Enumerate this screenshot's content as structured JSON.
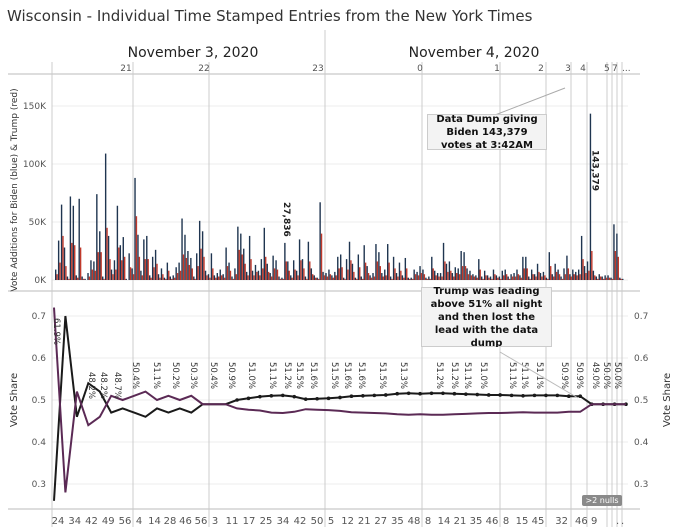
{
  "title": "Wisconsin - Individual Time Stamped Entries from the New York Times",
  "colors": {
    "biden": "#1f3550",
    "trump": "#c0392b",
    "biden_share": "#5b2a55",
    "trump_share": "#1a1a1a",
    "grid": "#c8c8c8"
  },
  "chart_data": [
    {
      "type": "bar",
      "ylabel": "Vote Additions for Biden (blue) & Trump (red)",
      "ytick_labels": [
        "0K",
        "50K",
        "100K",
        "150K"
      ],
      "ylim": [
        0,
        175000
      ],
      "date_labels": [
        "November 3, 2020",
        "November 4, 2020"
      ],
      "hour_labels": [
        "21",
        "22",
        "23",
        "0",
        "1",
        "2",
        "3",
        "4",
        "5",
        "7",
        "..."
      ],
      "series": [
        {
          "name": "Biden",
          "values": [
            9,
            34,
            65,
            28,
            3,
            72,
            64,
            4,
            70,
            3,
            1,
            6,
            17,
            16,
            74,
            42,
            3,
            109,
            38,
            9,
            17,
            64,
            30,
            37,
            1,
            23,
            10,
            88,
            39,
            8,
            35,
            38,
            4,
            20,
            26,
            5,
            10,
            2,
            15,
            3,
            4,
            11,
            15,
            53,
            39,
            25,
            19,
            3,
            23,
            51,
            42,
            8,
            5,
            23,
            4,
            6,
            9,
            5,
            28,
            15,
            3,
            10,
            46,
            40,
            27,
            7,
            38,
            8,
            13,
            8,
            18,
            45,
            14,
            6,
            21,
            17,
            3,
            2,
            32,
            16,
            4,
            17,
            8,
            35,
            18,
            3,
            33,
            10,
            4,
            2,
            67,
            7,
            6,
            9,
            4,
            7,
            20,
            22,
            2,
            18,
            33,
            14,
            2,
            22,
            3,
            30,
            12,
            4,
            6,
            31,
            24,
            6,
            9,
            31,
            3,
            20,
            6,
            15,
            4,
            19,
            2,
            2,
            9,
            7,
            12,
            9,
            2,
            3,
            20,
            8,
            6,
            6,
            32,
            14,
            16,
            6,
            11,
            10,
            25,
            24,
            10,
            8,
            5,
            4,
            18,
            3,
            8,
            4,
            3,
            9,
            4,
            3,
            8,
            9,
            3,
            5,
            6,
            9,
            4,
            20,
            20,
            3,
            9,
            5,
            14,
            6,
            7,
            2,
            24,
            5,
            14,
            9,
            3,
            10,
            21,
            5,
            9,
            7,
            9,
            38,
            12,
            16,
            143.4,
            8,
            3,
            5,
            3,
            4,
            4,
            2,
            48,
            40,
            2,
            1
          ],
          "note_label": "27,836"
        },
        {
          "name": "Trump",
          "values": [
            5,
            15,
            38,
            12,
            1,
            32,
            30,
            2,
            28,
            1,
            0,
            3,
            9,
            8,
            24,
            24,
            1,
            45,
            18,
            5,
            9,
            28,
            17,
            20,
            0,
            11,
            5,
            55,
            20,
            4,
            18,
            18,
            2,
            11,
            14,
            2,
            5,
            1,
            8,
            1,
            2,
            6,
            8,
            22,
            19,
            13,
            10,
            1,
            12,
            27,
            20,
            4,
            2,
            10,
            2,
            3,
            4,
            2,
            12,
            8,
            1,
            5,
            26,
            22,
            14,
            4,
            18,
            4,
            7,
            4,
            10,
            20,
            7,
            3,
            10,
            9,
            1,
            1,
            16,
            8,
            2,
            9,
            4,
            17,
            10,
            1,
            16,
            5,
            2,
            1,
            40,
            4,
            3,
            5,
            2,
            4,
            10,
            11,
            1,
            9,
            17,
            7,
            1,
            11,
            1,
            15,
            6,
            2,
            3,
            16,
            12,
            3,
            4,
            15,
            1,
            10,
            3,
            8,
            2,
            10,
            1,
            1,
            5,
            4,
            6,
            5,
            1,
            1,
            10,
            4,
            3,
            3,
            16,
            7,
            8,
            3,
            6,
            5,
            12,
            12,
            5,
            4,
            3,
            2,
            9,
            1,
            4,
            2,
            1,
            5,
            2,
            1,
            4,
            5,
            1,
            3,
            3,
            5,
            2,
            10,
            10,
            1,
            5,
            3,
            7,
            3,
            4,
            1,
            12,
            3,
            7,
            5,
            1,
            5,
            10,
            3,
            5,
            4,
            5,
            18,
            6,
            8,
            25,
            4,
            1,
            3,
            1,
            2,
            2,
            1,
            25,
            20,
            1,
            0
          ]
        }
      ],
      "annotation": "Data Dump giving Biden 143,379 votes at 3:42AM",
      "spike_label": "143,379"
    },
    {
      "type": "line",
      "ylabel": "Vote Share",
      "ytick_labels": [
        "0.3",
        "0.4",
        "0.5",
        "0.6",
        "0.7"
      ],
      "ylim": [
        0.27,
        0.73
      ],
      "series": [
        {
          "name": "Trump",
          "values": [
            0.26,
            0.7,
            0.46,
            0.54,
            0.52,
            0.47,
            0.48,
            0.47,
            0.46,
            0.48,
            0.47,
            0.48,
            0.47,
            0.49,
            0.49,
            0.49,
            0.5,
            0.504,
            0.508,
            0.51,
            0.511,
            0.508,
            0.502,
            0.503,
            0.504,
            0.506,
            0.509,
            0.51,
            0.511,
            0.512,
            0.515,
            0.516,
            0.515,
            0.516,
            0.516,
            0.515,
            0.514,
            0.513,
            0.512,
            0.512,
            0.511,
            0.51,
            0.511,
            0.511,
            0.511,
            0.509,
            0.509,
            0.49,
            0.49,
            0.49,
            0.49
          ]
        },
        {
          "name": "Biden",
          "values": [
            0.72,
            0.28,
            0.52,
            0.44,
            0.46,
            0.51,
            0.5,
            0.51,
            0.52,
            0.5,
            0.51,
            0.5,
            0.51,
            0.49,
            0.49,
            0.49,
            0.48,
            0.477,
            0.475,
            0.47,
            0.469,
            0.472,
            0.478,
            0.477,
            0.476,
            0.474,
            0.471,
            0.47,
            0.469,
            0.468,
            0.466,
            0.465,
            0.466,
            0.465,
            0.465,
            0.466,
            0.467,
            0.468,
            0.469,
            0.469,
            0.47,
            0.471,
            0.47,
            0.47,
            0.47,
            0.472,
            0.472,
            0.49,
            0.49,
            0.49,
            0.49
          ]
        }
      ],
      "point_labels": [
        "61.9%",
        "48.2%",
        "48.2%",
        "48.7%",
        "50.4%",
        "51.1%",
        "50.2%",
        "50.3%",
        "50.4%",
        "50.9%",
        "51.0%",
        "51.1%",
        "51.2%",
        "51.5%",
        "51.6%",
        "51.5%",
        "51.6%",
        "51.6%",
        "51.5%",
        "51.3%",
        "51.2%",
        "51.2%",
        "51.1%",
        "51.0%",
        "51.1%",
        "51.1%",
        "51.1%",
        "50.9%",
        "50.9%",
        "49.0%",
        "50.0%",
        "50.0%"
      ],
      "annotation": "Trump was leading above 51% all night and then lost the lead with the data dump",
      "nulls_badge": ">2 nulls",
      "minute_labels": [
        [
          "24",
          "34",
          "42",
          "49",
          "56"
        ],
        [
          "4",
          "14",
          "28",
          "46",
          "56"
        ],
        [
          "3",
          "11",
          "17",
          "25",
          "34",
          "42",
          "50"
        ],
        [
          "5",
          "12",
          "21",
          "27",
          "35",
          "48"
        ],
        [
          "8",
          "14",
          "21",
          "35",
          "46"
        ],
        [
          "8",
          "15",
          "45"
        ],
        [
          "32"
        ],
        [
          "46"
        ],
        [
          "9"
        ],
        [
          "."
        ],
        [
          "."
        ]
      ]
    }
  ]
}
